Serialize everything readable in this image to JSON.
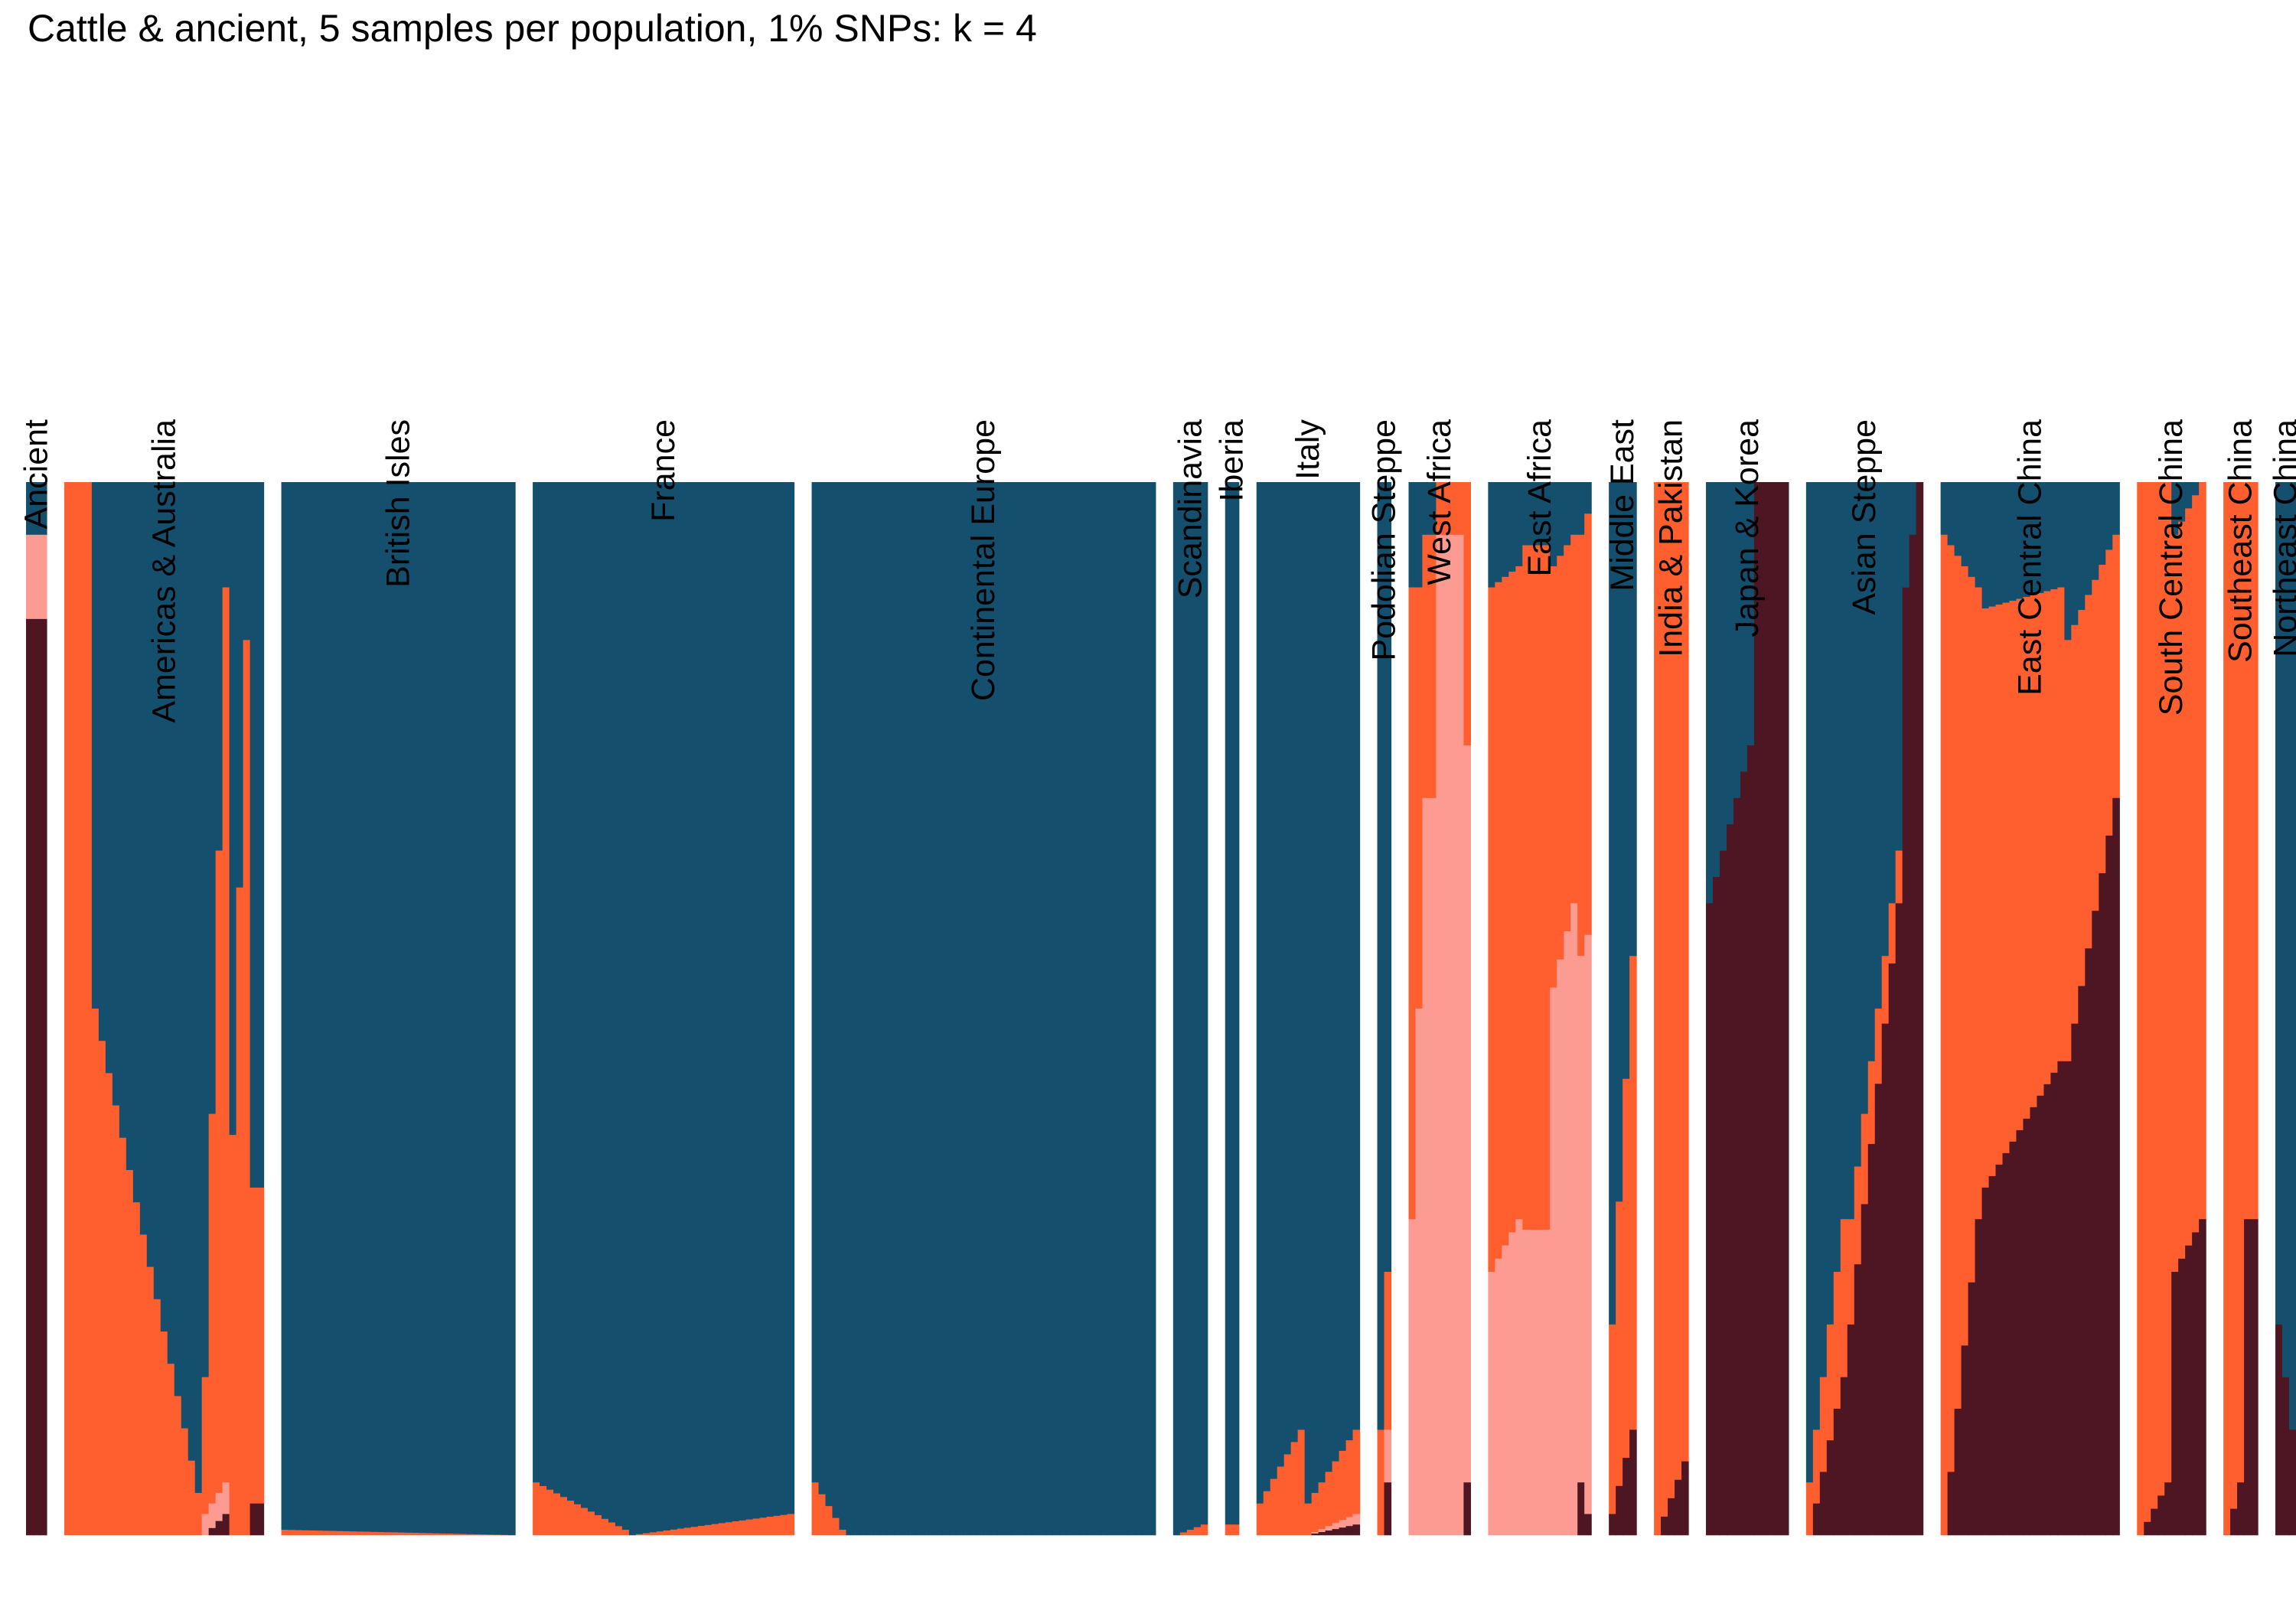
{
  "chart_data": {
    "type": "stacked-bar",
    "title": "Cattle & ancient, 5 samples per population, 1% SNPs: k = 4",
    "xlabel": "",
    "ylabel": "",
    "ylim": [
      0,
      1
    ],
    "grid": false,
    "legend": "none",
    "components": [
      {
        "key": "steel_blue",
        "color": "#154F6E"
      },
      {
        "key": "orange",
        "color": "#FF5F2E"
      },
      {
        "key": "pink",
        "color": "#FC9B91"
      },
      {
        "key": "maroon",
        "color": "#4D1622"
      }
    ],
    "populations": [
      {
        "name": "Ancient",
        "segments": [
          {
            "n": 3,
            "from": [
              0.05,
              0.0,
              0.08,
              0.87
            ],
            "to": [
              0.05,
              0.0,
              0.08,
              0.87
            ]
          }
        ]
      },
      {
        "name": "Americas & Australia",
        "segments": [
          {
            "n": 4,
            "from": [
              0.0,
              1.0,
              0.0,
              0.0
            ],
            "to": [
              0.0,
              1.0,
              0.0,
              0.0
            ]
          },
          {
            "n": 16,
            "from": [
              0.5,
              0.5,
              0.0,
              0.0
            ],
            "to": [
              0.96,
              0.04,
              0.0,
              0.0
            ]
          },
          {
            "n": 4,
            "from": [
              0.85,
              0.13,
              0.02,
              0.0
            ],
            "to": [
              0.1,
              0.85,
              0.03,
              0.02
            ]
          },
          {
            "n": 3,
            "from": [
              0.62,
              0.38,
              0.0,
              0.0
            ],
            "to": [
              0.15,
              0.85,
              0.0,
              0.0
            ]
          },
          {
            "n": 2,
            "from": [
              0.67,
              0.3,
              0.0,
              0.03
            ],
            "to": [
              0.67,
              0.3,
              0.0,
              0.03
            ]
          }
        ]
      },
      {
        "name": "British Isles",
        "segments": [
          {
            "n": 34,
            "from": [
              0.995,
              0.005,
              0.0,
              0.0
            ],
            "to": [
              1.0,
              0.0,
              0.0,
              0.0
            ]
          }
        ]
      },
      {
        "name": "France",
        "segments": [
          {
            "n": 14,
            "from": [
              0.95,
              0.05,
              0.0,
              0.0
            ],
            "to": [
              0.995,
              0.005,
              0.0,
              0.0
            ]
          },
          {
            "n": 24,
            "from": [
              1.0,
              0.0,
              0.0,
              0.0
            ],
            "to": [
              0.98,
              0.02,
              0.0,
              0.0
            ]
          }
        ]
      },
      {
        "name": "Continental Europe",
        "segments": [
          {
            "n": 5,
            "from": [
              0.95,
              0.05,
              0.0,
              0.0
            ],
            "to": [
              0.995,
              0.005,
              0.0,
              0.0
            ]
          },
          {
            "n": 45,
            "from": [
              1.0,
              0.0,
              0.0,
              0.0
            ],
            "to": [
              1.0,
              0.0,
              0.0,
              0.0
            ]
          }
        ]
      },
      {
        "name": "Scandinavia",
        "segments": [
          {
            "n": 5,
            "from": [
              1.0,
              0.0,
              0.0,
              0.0
            ],
            "to": [
              0.99,
              0.01,
              0.0,
              0.0
            ]
          }
        ]
      },
      {
        "name": "Iberia",
        "segments": [
          {
            "n": 2,
            "from": [
              0.99,
              0.01,
              0.0,
              0.0
            ],
            "to": [
              0.99,
              0.01,
              0.0,
              0.0
            ]
          }
        ]
      },
      {
        "name": "Italy",
        "segments": [
          {
            "n": 7,
            "from": [
              0.97,
              0.03,
              0.0,
              0.0
            ],
            "to": [
              0.9,
              0.1,
              0.0,
              0.0
            ]
          },
          {
            "n": 8,
            "from": [
              0.97,
              0.03,
              0.0,
              0.0
            ],
            "to": [
              0.9,
              0.08,
              0.01,
              0.01
            ]
          }
        ]
      },
      {
        "name": "Podolian Steppe",
        "segments": [
          {
            "n": 2,
            "from": [
              0.9,
              0.1,
              0.0,
              0.0
            ],
            "to": [
              0.75,
              0.15,
              0.05,
              0.05
            ]
          }
        ]
      },
      {
        "name": "West Africa",
        "segments": [
          {
            "n": 2,
            "from": [
              0.1,
              0.6,
              0.3,
              0.0
            ],
            "to": [
              0.1,
              0.4,
              0.5,
              0.0
            ]
          },
          {
            "n": 2,
            "from": [
              0.05,
              0.25,
              0.7,
              0.0
            ],
            "to": [
              0.05,
              0.25,
              0.7,
              0.0
            ]
          },
          {
            "n": 4,
            "from": [
              0.0,
              0.05,
              0.95,
              0.0
            ],
            "to": [
              0.0,
              0.05,
              0.95,
              0.0
            ]
          },
          {
            "n": 1,
            "from": [
              0.0,
              0.25,
              0.7,
              0.05
            ],
            "to": [
              0.0,
              0.25,
              0.7,
              0.05
            ]
          }
        ]
      },
      {
        "name": "East Africa",
        "segments": [
          {
            "n": 5,
            "from": [
              0.1,
              0.65,
              0.25,
              0.0
            ],
            "to": [
              0.08,
              0.62,
              0.3,
              0.0
            ]
          },
          {
            "n": 4,
            "from": [
              0.06,
              0.65,
              0.29,
              0.0
            ],
            "to": [
              0.06,
              0.65,
              0.29,
              0.0
            ]
          },
          {
            "n": 4,
            "from": [
              0.08,
              0.4,
              0.52,
              0.0
            ],
            "to": [
              0.05,
              0.35,
              0.6,
              0.0
            ]
          },
          {
            "n": 2,
            "from": [
              0.05,
              0.4,
              0.5,
              0.05
            ],
            "to": [
              0.03,
              0.4,
              0.55,
              0.02
            ]
          }
        ]
      },
      {
        "name": "Middle East",
        "segments": [
          {
            "n": 4,
            "from": [
              0.8,
              0.18,
              0.0,
              0.02
            ],
            "to": [
              0.45,
              0.45,
              0.0,
              0.1
            ]
          }
        ]
      },
      {
        "name": "India & Pakistan",
        "segments": [
          {
            "n": 5,
            "from": [
              0.0,
              1.0,
              0.0,
              0.0
            ],
            "to": [
              0.0,
              0.93,
              0.0,
              0.07
            ]
          }
        ]
      },
      {
        "name": "Japan & Korea",
        "segments": [
          {
            "n": 7,
            "from": [
              0.4,
              0.0,
              0.0,
              0.6
            ],
            "to": [
              0.25,
              0.0,
              0.0,
              0.75
            ]
          },
          {
            "n": 5,
            "from": [
              0.0,
              0.0,
              0.0,
              1.0
            ],
            "to": [
              0.0,
              0.0,
              0.0,
              1.0
            ]
          }
        ]
      },
      {
        "name": "Asian Steppe",
        "segments": [
          {
            "n": 6,
            "from": [
              0.95,
              0.05,
              0.0,
              0.0
            ],
            "to": [
              0.7,
              0.15,
              0.0,
              0.15
            ]
          },
          {
            "n": 8,
            "from": [
              0.7,
              0.1,
              0.0,
              0.2
            ],
            "to": [
              0.35,
              0.05,
              0.0,
              0.6
            ]
          },
          {
            "n": 3,
            "from": [
              0.1,
              0.0,
              0.0,
              0.9
            ],
            "to": [
              0.0,
              0.0,
              0.0,
              1.0
            ]
          }
        ]
      },
      {
        "name": "East Central China",
        "segments": [
          {
            "n": 6,
            "from": [
              0.05,
              0.95,
              0.0,
              0.0
            ],
            "to": [
              0.1,
              0.6,
              0.0,
              0.3
            ]
          },
          {
            "n": 12,
            "from": [
              0.12,
              0.55,
              0.0,
              0.33
            ],
            "to": [
              0.1,
              0.45,
              0.0,
              0.45
            ]
          },
          {
            "n": 8,
            "from": [
              0.15,
              0.4,
              0.0,
              0.45
            ],
            "to": [
              0.05,
              0.25,
              0.0,
              0.7
            ]
          }
        ]
      },
      {
        "name": "South Central China",
        "segments": [
          {
            "n": 5,
            "from": [
              0.0,
              1.0,
              0.0,
              0.0
            ],
            "to": [
              0.0,
              0.95,
              0.0,
              0.05
            ]
          },
          {
            "n": 5,
            "from": [
              0.05,
              0.7,
              0.0,
              0.25
            ],
            "to": [
              0.0,
              0.7,
              0.0,
              0.3
            ]
          }
        ]
      },
      {
        "name": "Southeast China",
        "segments": [
          {
            "n": 3,
            "from": [
              0.0,
              1.0,
              0.0,
              0.0
            ],
            "to": [
              0.0,
              0.95,
              0.0,
              0.05
            ]
          },
          {
            "n": 2,
            "from": [
              0.0,
              0.7,
              0.0,
              0.3
            ],
            "to": [
              0.0,
              0.7,
              0.0,
              0.3
            ]
          }
        ]
      },
      {
        "name": "Northeast China",
        "segments": [
          {
            "n": 3,
            "from": [
              0.8,
              0.0,
              0.0,
              0.2
            ],
            "to": [
              0.9,
              0.0,
              0.0,
              0.1
            ]
          }
        ]
      }
    ]
  }
}
